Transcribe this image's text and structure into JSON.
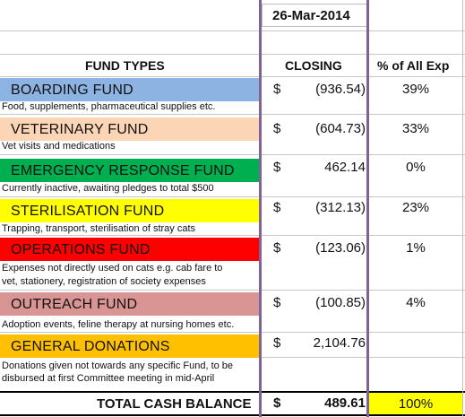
{
  "header": {
    "date": "26-Mar-2014",
    "col_fund_types": "FUND TYPES",
    "col_closing": "CLOSING",
    "col_pct": "% of All Exp"
  },
  "funds": [
    {
      "name": "BOARDING FUND",
      "desc": [
        "Food, supplements, pharmaceutical supplies etc."
      ],
      "currency": "$",
      "closing": "(936.54)",
      "pct": "39%",
      "color": "#8db3e2"
    },
    {
      "name": "VETERINARY FUND",
      "desc": [
        "Vet visits and medications"
      ],
      "currency": "$",
      "closing": "(604.73)",
      "pct": "33%",
      "color": "#fbd5b5"
    },
    {
      "name": "EMERGENCY RESPONSE FUND",
      "desc": [
        "Currently inactive, awaiting pledges to total $500"
      ],
      "currency": "$",
      "closing": "462.14",
      "pct": "0%",
      "color": "#00b050"
    },
    {
      "name": "STERILISATION FUND",
      "desc": [
        "Trapping, transport, sterilisation of stray cats"
      ],
      "currency": "$",
      "closing": "(312.13)",
      "pct": "23%",
      "color": "#ffff00"
    },
    {
      "name": "OPERATIONS FUND",
      "desc": [
        "Expenses not directly used on cats e.g. cab fare to",
        "vet, stationery, registration of society expenses"
      ],
      "currency": "$",
      "closing": "(123.06)",
      "pct": "1%",
      "color": "#ff0000"
    },
    {
      "name": "OUTREACH FUND",
      "desc": [
        "Adoption events, feline therapy at nursing homes etc."
      ],
      "currency": "$",
      "closing": "(100.85)",
      "pct": "4%",
      "color": "#d99594"
    },
    {
      "name": "GENERAL DONATIONS",
      "desc": [
        "Donations given not towards any specific Fund, to be",
        "disbursed at first Committee meeting in mid-April"
      ],
      "currency": "$",
      "closing": "2,104.76",
      "pct": "",
      "color": "#ffc000"
    }
  ],
  "total": {
    "label": "TOTAL CASH BALANCE",
    "currency": "$",
    "closing": "489.61",
    "pct": "100%",
    "pct_color": "#ffff00"
  }
}
